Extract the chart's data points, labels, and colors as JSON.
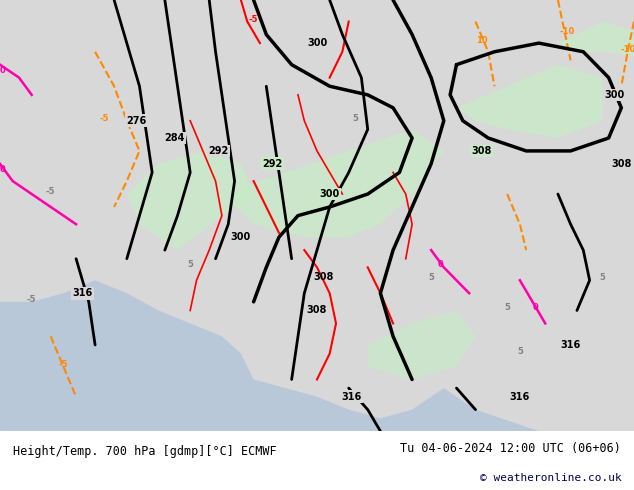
{
  "title_left": "Height/Temp. 700 hPa [gdmp][°C] ECMWF",
  "title_right": "Tu 04-06-2024 12:00 UTC (06+06)",
  "copyright": "© weatheronline.co.uk",
  "bg_color": "#d8d8d8",
  "map_bg": "#d8d8d8",
  "land_color": "#e8e8e8",
  "water_color": "#c8d8e8",
  "positive_temp_color": "#90ee90",
  "negative_temp_color": "#ffffff",
  "height_line_color": "#000000",
  "temp_positive_line_color": "#ff0000",
  "temp_negative_line_color": "#ff8800",
  "zero_temp_line_color": "#ff00ff",
  "footer_bg": "#ffffff",
  "footer_text_color": "#000000",
  "copyright_color": "#000055"
}
